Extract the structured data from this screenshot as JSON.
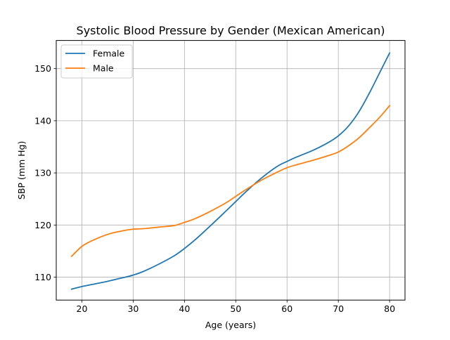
{
  "chart_data": {
    "type": "line",
    "title": "Systolic Blood Pressure by Gender (Mexican American)",
    "xlabel": "Age (years)",
    "ylabel": "SBP (mm Hg)",
    "xlim": [
      15,
      83
    ],
    "ylim": [
      105.6,
      155.4
    ],
    "xticks": [
      20,
      30,
      40,
      50,
      60,
      70,
      80
    ],
    "yticks": [
      110,
      120,
      130,
      140,
      150
    ],
    "grid": true,
    "legend": "top-left",
    "x": [
      18,
      20,
      22,
      25,
      28,
      30,
      32,
      35,
      38,
      40,
      42,
      45,
      48,
      50,
      52,
      55,
      58,
      60,
      62,
      65,
      68,
      70,
      72,
      74,
      76,
      78,
      80
    ],
    "series": [
      {
        "name": "Female",
        "color": "#1f77b4",
        "values": [
          107.7,
          108.2,
          108.6,
          109.2,
          109.9,
          110.4,
          111.1,
          112.5,
          114.1,
          115.5,
          117.1,
          119.8,
          122.6,
          124.5,
          126.4,
          129.0,
          131.2,
          132.2,
          133.1,
          134.3,
          135.8,
          137.1,
          139.0,
          141.7,
          145.2,
          149.1,
          153.0
        ]
      },
      {
        "name": "Male",
        "color": "#ff7f0e",
        "values": [
          114.0,
          115.9,
          117.0,
          118.2,
          118.9,
          119.2,
          119.3,
          119.6,
          119.9,
          120.5,
          121.2,
          122.6,
          124.2,
          125.5,
          126.8,
          128.6,
          130.1,
          131.0,
          131.6,
          132.4,
          133.3,
          134.0,
          135.2,
          136.7,
          138.6,
          140.6,
          142.9
        ]
      }
    ]
  }
}
